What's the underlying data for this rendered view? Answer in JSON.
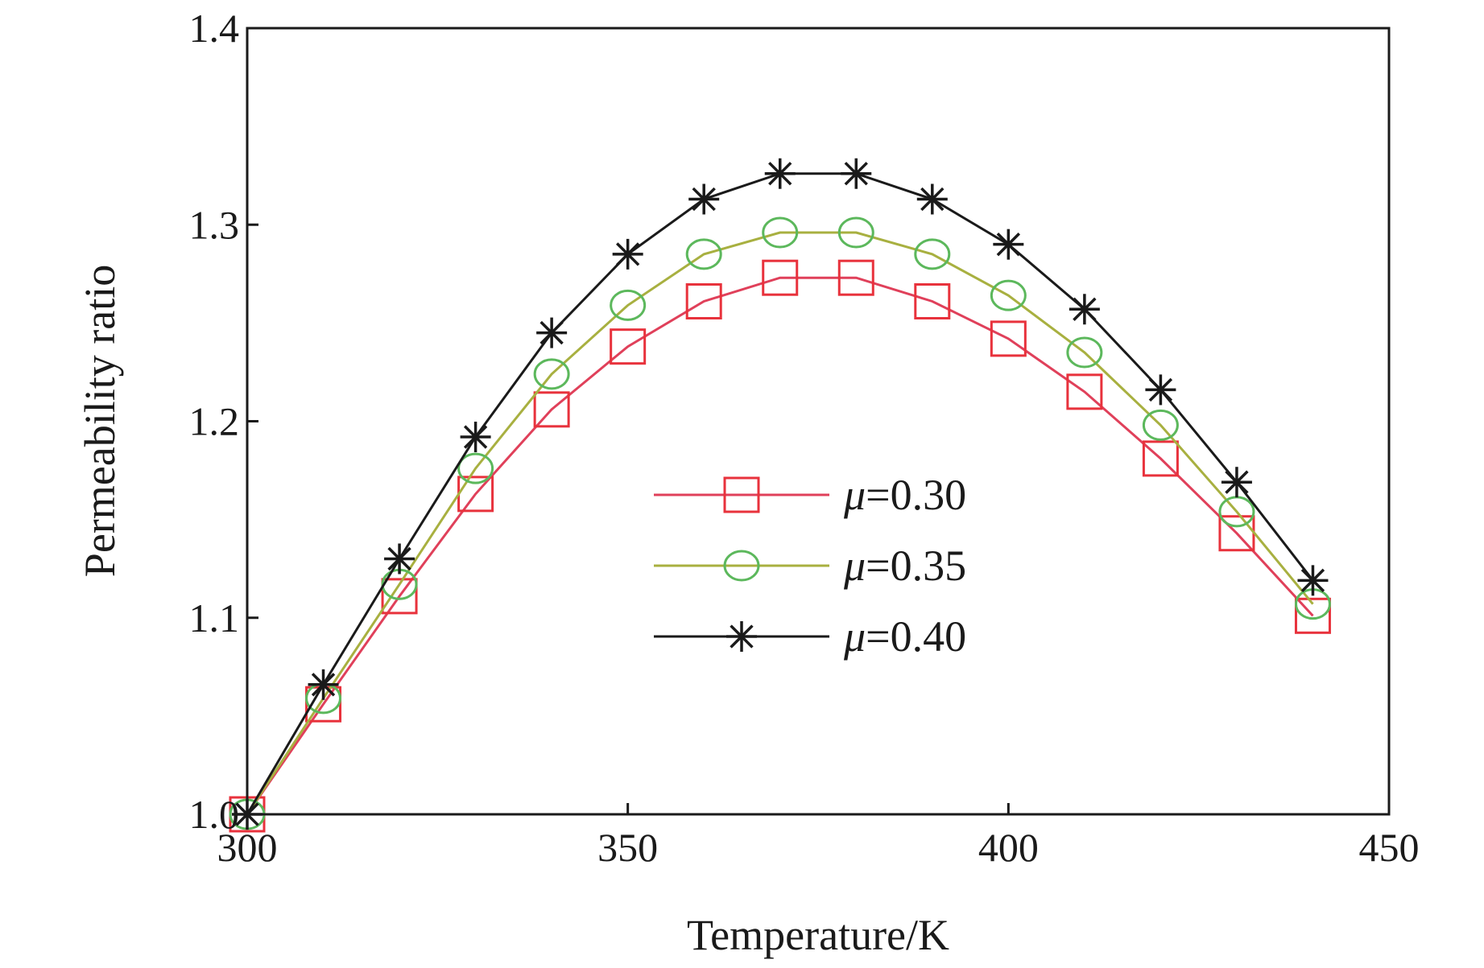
{
  "chart_data": {
    "type": "line",
    "title": "",
    "xlabel": "Temperature/K",
    "ylabel": "Permeability ratio",
    "xlim": [
      300,
      450
    ],
    "ylim": [
      1.0,
      1.4
    ],
    "xticks": [
      300,
      350,
      400,
      450
    ],
    "yticks": [
      1.0,
      1.1,
      1.2,
      1.3,
      1.4
    ],
    "xtick_labels": [
      "300",
      "350",
      "400",
      "450"
    ],
    "ytick_labels": [
      "1.0",
      "1.1",
      "1.2",
      "1.3",
      "1.4"
    ],
    "grid": false,
    "legend_position": "center-right",
    "x": [
      300,
      310,
      320,
      330,
      340,
      350,
      360,
      370,
      380,
      390,
      400,
      410,
      420,
      430,
      440
    ],
    "series": [
      {
        "name": "μ=0.30",
        "label_symbol": "μ",
        "label_value": "=0.30",
        "marker": "square",
        "line_color": "#e0405a",
        "marker_color": "#e8323c",
        "values": [
          1.0,
          1.056,
          1.111,
          1.163,
          1.206,
          1.238,
          1.261,
          1.273,
          1.273,
          1.261,
          1.242,
          1.215,
          1.181,
          1.143,
          1.101
        ]
      },
      {
        "name": "μ=0.35",
        "label_symbol": "μ",
        "label_value": "=0.35",
        "marker": "circle",
        "line_color": "#a8b040",
        "marker_color": "#5cb85c",
        "values": [
          1.0,
          1.059,
          1.117,
          1.176,
          1.224,
          1.259,
          1.285,
          1.296,
          1.296,
          1.285,
          1.264,
          1.235,
          1.198,
          1.154,
          1.107
        ]
      },
      {
        "name": "μ=0.40",
        "label_symbol": "μ",
        "label_value": "=0.40",
        "marker": "asterisk",
        "line_color": "#1a1a1a",
        "marker_color": "#1a1a1a",
        "values": [
          1.0,
          1.066,
          1.13,
          1.192,
          1.245,
          1.285,
          1.313,
          1.326,
          1.326,
          1.313,
          1.29,
          1.257,
          1.216,
          1.169,
          1.119
        ]
      }
    ]
  }
}
